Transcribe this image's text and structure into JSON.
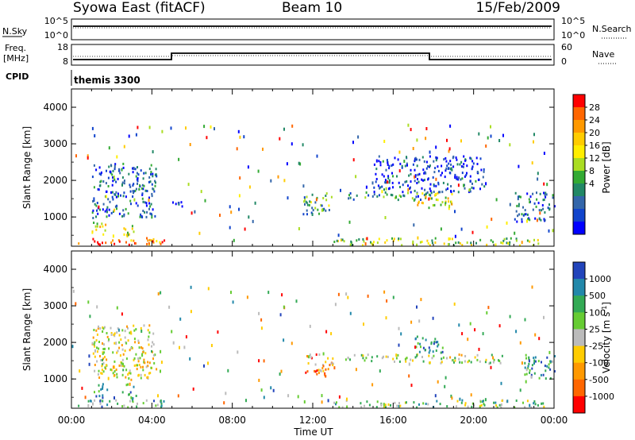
{
  "header": {
    "station": "Syowa East (fitACF)",
    "beam": "Beam 10",
    "date": "15/Feb/2009"
  },
  "panels": {
    "noise": {
      "label": "N.Sky",
      "left_ticks": [
        "10^5",
        "10^0"
      ],
      "right_ticks": [
        "10^5",
        "10^0"
      ],
      "right_label": "N.Search"
    },
    "freq": {
      "label": "Freq.",
      "unit": "[MHz]",
      "left_ticks": [
        "18",
        "8"
      ],
      "right_ticks": [
        "60",
        "0"
      ],
      "right_label": "Nave"
    },
    "cpid": {
      "label": "CPID",
      "mode": "themis 3300"
    }
  },
  "chart_data": [
    {
      "type": "heatmap",
      "name": "power",
      "ylabel": "Slant Range [km]",
      "xlabel": "",
      "yticks": [
        "1000",
        "2000",
        "3000",
        "4000"
      ],
      "ylim": [
        200,
        4500
      ],
      "xlim": [
        0,
        24
      ],
      "colorbar": {
        "title": "Power [dB]",
        "ticks": [
          "28",
          "24",
          "20",
          "16",
          "12",
          "8",
          "4"
        ],
        "colors": [
          "#ff0000",
          "#ff6600",
          "#ff9900",
          "#ffcc00",
          "#ffee00",
          "#aadd22",
          "#33aa33",
          "#228866",
          "#3366aa",
          "#1144cc",
          "#0000ff"
        ]
      },
      "clusters": [
        {
          "t": [
            0.3,
            4.6
          ],
          "r": [
            250,
            450
          ],
          "level": 0.85
        },
        {
          "t": [
            1.0,
            1.8
          ],
          "r": [
            500,
            900
          ],
          "level": 0.55
        },
        {
          "t": [
            2.5,
            3.2
          ],
          "r": [
            500,
            900
          ],
          "level": 0.5
        },
        {
          "t": [
            1.0,
            4.2
          ],
          "r": [
            1000,
            2500
          ],
          "level": 0.2
        },
        {
          "t": [
            4.6,
            5.8
          ],
          "r": [
            1300,
            1450
          ],
          "level": 0.15
        },
        {
          "t": [
            11.5,
            13.0
          ],
          "r": [
            1100,
            1700
          ],
          "level": 0.35
        },
        {
          "t": [
            13.5,
            18.0
          ],
          "r": [
            1500,
            1700
          ],
          "level": 0.3
        },
        {
          "t": [
            17.0,
            19.0
          ],
          "r": [
            1250,
            1700
          ],
          "level": 0.6
        },
        {
          "t": [
            13.0,
            23.5
          ],
          "r": [
            250,
            450
          ],
          "level": 0.5
        },
        {
          "t": [
            15.0,
            20.5
          ],
          "r": [
            1700,
            2700
          ],
          "level": 0.15
        },
        {
          "t": [
            22.0,
            24.0
          ],
          "r": [
            900,
            1700
          ],
          "level": 0.2
        }
      ]
    },
    {
      "type": "heatmap",
      "name": "velocity",
      "ylabel": "Slant Range [km]",
      "xlabel": "Time UT",
      "xticks": [
        "00:00",
        "04:00",
        "08:00",
        "12:00",
        "16:00",
        "20:00",
        "00:00"
      ],
      "yticks": [
        "1000",
        "2000",
        "3000",
        "4000"
      ],
      "ylim": [
        200,
        4500
      ],
      "xlim": [
        0,
        24
      ],
      "colorbar": {
        "title": "Velocity [m s^-1]",
        "ticks": [
          "1000",
          "500",
          "100",
          "25",
          "-25",
          "-100",
          "-500",
          "-1000"
        ],
        "colors": [
          "#2244bb",
          "#2288aa",
          "#33aa55",
          "#66cc33",
          "#bbbbbb",
          "#ffcc00",
          "#ff9900",
          "#ff6600",
          "#ff0000"
        ]
      },
      "clusters": [
        {
          "t": [
            0.3,
            4.6
          ],
          "r": [
            250,
            450
          ],
          "level": 0.7
        },
        {
          "t": [
            1.0,
            1.8
          ],
          "r": [
            500,
            900
          ],
          "level": 0.8
        },
        {
          "t": [
            2.5,
            3.2
          ],
          "r": [
            500,
            900
          ],
          "level": 0.8
        },
        {
          "t": [
            1.0,
            4.2
          ],
          "r": [
            1000,
            2500
          ],
          "level": 0.45
        },
        {
          "t": [
            11.5,
            13.0
          ],
          "r": [
            1100,
            1700
          ],
          "level": 0.3
        },
        {
          "t": [
            13.5,
            18.0
          ],
          "r": [
            1500,
            1700
          ],
          "level": 0.55
        },
        {
          "t": [
            17.6,
            21.5
          ],
          "r": [
            1450,
            1700
          ],
          "level": 0.5
        },
        {
          "t": [
            17.0,
            18.5
          ],
          "r": [
            1700,
            2200
          ],
          "level": 0.85
        },
        {
          "t": [
            13.0,
            23.5
          ],
          "r": [
            250,
            450
          ],
          "level": 0.6
        },
        {
          "t": [
            22.5,
            24.0
          ],
          "r": [
            1000,
            1700
          ],
          "level": 0.75
        }
      ]
    }
  ]
}
